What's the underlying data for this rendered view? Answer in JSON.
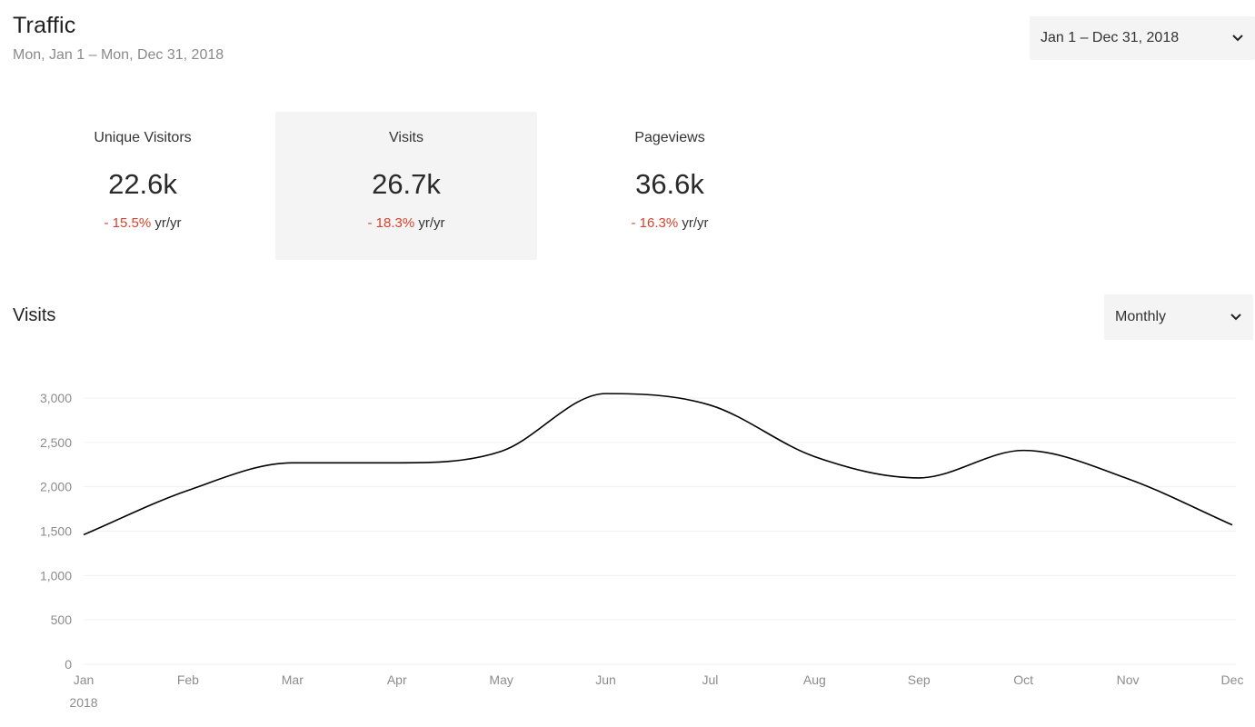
{
  "header": {
    "title": "Traffic",
    "subtitle": "Mon, Jan 1 – Mon, Dec 31, 2018",
    "date_range_select": "Jan 1 – Dec 31, 2018"
  },
  "metrics": [
    {
      "label": "Unique Visitors",
      "value": "22.6k",
      "change": "- 15.5%",
      "change_suffix": " yr/yr",
      "active": false
    },
    {
      "label": "Visits",
      "value": "26.7k",
      "change": "- 18.3%",
      "change_suffix": " yr/yr",
      "active": true
    },
    {
      "label": "Pageviews",
      "value": "36.6k",
      "change": "- 16.3%",
      "change_suffix": " yr/yr",
      "active": false
    }
  ],
  "visits_section": {
    "title": "Visits",
    "interval_select": "Monthly"
  },
  "colors": {
    "negative": "#d9412d",
    "line": "#000000",
    "active_tile": "#f4f4f4"
  },
  "chart_data": {
    "type": "line",
    "categories": [
      "Jan",
      "Feb",
      "Mar",
      "Apr",
      "May",
      "Jun",
      "Jul",
      "Aug",
      "Sep",
      "Oct",
      "Nov",
      "Dec"
    ],
    "year_label": "2018",
    "series": [
      {
        "values": [
          1460,
          1960,
          2270,
          2270,
          2400,
          3050,
          2920,
          2340,
          2100,
          2410,
          2090,
          1570
        ]
      }
    ],
    "y_ticks": [
      "0",
      "500",
      "1,000",
      "1,500",
      "2,000",
      "2,500",
      "3,000"
    ],
    "y_tick_values": [
      0,
      500,
      1000,
      1500,
      2000,
      2500,
      3000
    ],
    "ylim": [
      0,
      3000
    ],
    "grid": true,
    "legend": "none"
  }
}
